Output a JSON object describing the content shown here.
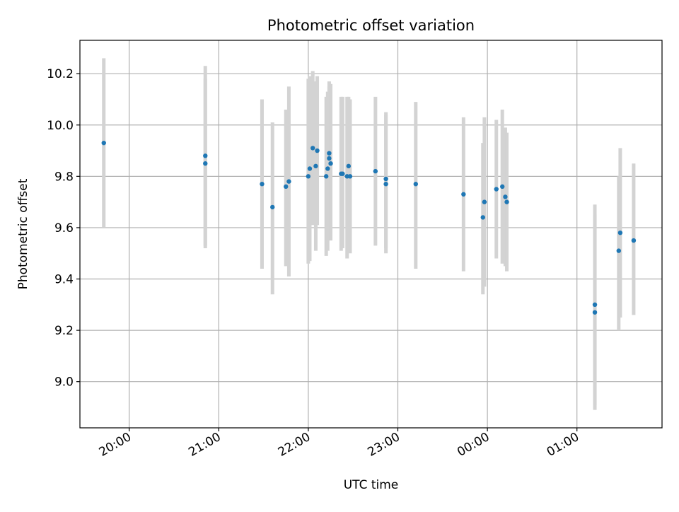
{
  "chart_data": {
    "type": "scatter",
    "title": "Photometric offset variation",
    "xlabel": "UTC time",
    "ylabel": "Photometric offset",
    "x_axis_kind": "time",
    "xlim": [
      "19:27",
      "01:57"
    ],
    "ylim": [
      8.82,
      10.33
    ],
    "x_ticks": [
      "20:00",
      "21:00",
      "22:00",
      "23:00",
      "00:00",
      "01:00"
    ],
    "y_ticks": [
      "9.0",
      "9.2",
      "9.4",
      "9.6",
      "9.8",
      "10.0",
      "10.2"
    ],
    "grid": true,
    "legend": "none",
    "point_color": "#1f77b4",
    "errorbar_color": "#d3d3d3",
    "points": [
      {
        "t": "19:43",
        "y": 9.93,
        "lo": 9.6,
        "hi": 10.26
      },
      {
        "t": "20:51",
        "y": 9.88,
        "lo": 9.53,
        "hi": 10.23
      },
      {
        "t": "20:51",
        "y": 9.85,
        "lo": 9.52,
        "hi": 10.18
      },
      {
        "t": "21:29",
        "y": 9.77,
        "lo": 9.44,
        "hi": 10.1
      },
      {
        "t": "21:36",
        "y": 9.68,
        "lo": 9.34,
        "hi": 10.01
      },
      {
        "t": "21:45",
        "y": 9.76,
        "lo": 9.45,
        "hi": 10.06
      },
      {
        "t": "21:47",
        "y": 9.78,
        "lo": 9.41,
        "hi": 10.15
      },
      {
        "t": "22:00",
        "y": 9.8,
        "lo": 9.46,
        "hi": 10.18
      },
      {
        "t": "22:01",
        "y": 9.83,
        "lo": 9.47,
        "hi": 10.19
      },
      {
        "t": "22:03",
        "y": 9.91,
        "lo": 9.61,
        "hi": 10.21
      },
      {
        "t": "22:05",
        "y": 9.84,
        "lo": 9.51,
        "hi": 10.17
      },
      {
        "t": "22:06",
        "y": 9.9,
        "lo": 9.61,
        "hi": 10.19
      },
      {
        "t": "22:12",
        "y": 9.8,
        "lo": 9.49,
        "hi": 10.11
      },
      {
        "t": "22:13",
        "y": 9.83,
        "lo": 9.51,
        "hi": 10.13
      },
      {
        "t": "22:14",
        "y": 9.89,
        "lo": 9.62,
        "hi": 10.17
      },
      {
        "t": "22:14",
        "y": 9.87,
        "lo": 9.59,
        "hi": 10.15
      },
      {
        "t": "22:15",
        "y": 9.85,
        "lo": 9.55,
        "hi": 10.16
      },
      {
        "t": "22:22",
        "y": 9.81,
        "lo": 9.51,
        "hi": 10.11
      },
      {
        "t": "22:23",
        "y": 9.81,
        "lo": 9.52,
        "hi": 10.11
      },
      {
        "t": "22:26",
        "y": 9.8,
        "lo": 9.48,
        "hi": 10.11
      },
      {
        "t": "22:27",
        "y": 9.84,
        "lo": 9.57,
        "hi": 10.11
      },
      {
        "t": "22:28",
        "y": 9.8,
        "lo": 9.5,
        "hi": 10.1
      },
      {
        "t": "22:45",
        "y": 9.82,
        "lo": 9.53,
        "hi": 10.11
      },
      {
        "t": "22:52",
        "y": 9.79,
        "lo": 9.52,
        "hi": 10.05
      },
      {
        "t": "22:52",
        "y": 9.77,
        "lo": 9.5,
        "hi": 10.04
      },
      {
        "t": "23:12",
        "y": 9.77,
        "lo": 9.44,
        "hi": 10.09
      },
      {
        "t": "23:44",
        "y": 9.73,
        "lo": 9.43,
        "hi": 10.03
      },
      {
        "t": "23:57",
        "y": 9.64,
        "lo": 9.34,
        "hi": 9.93
      },
      {
        "t": "23:58",
        "y": 9.7,
        "lo": 9.37,
        "hi": 10.03
      },
      {
        "t": "00:06",
        "y": 9.75,
        "lo": 9.48,
        "hi": 10.02
      },
      {
        "t": "00:10",
        "y": 9.76,
        "lo": 9.46,
        "hi": 10.06
      },
      {
        "t": "00:12",
        "y": 9.72,
        "lo": 9.45,
        "hi": 9.99
      },
      {
        "t": "00:13",
        "y": 9.7,
        "lo": 9.43,
        "hi": 9.97
      },
      {
        "t": "01:12",
        "y": 9.3,
        "lo": 8.91,
        "hi": 9.69
      },
      {
        "t": "01:12",
        "y": 9.27,
        "lo": 8.89,
        "hi": 9.65
      },
      {
        "t": "01:28",
        "y": 9.51,
        "lo": 9.2,
        "hi": 9.8
      },
      {
        "t": "01:29",
        "y": 9.58,
        "lo": 9.25,
        "hi": 9.91
      },
      {
        "t": "01:38",
        "y": 9.55,
        "lo": 9.26,
        "hi": 9.85
      }
    ]
  }
}
